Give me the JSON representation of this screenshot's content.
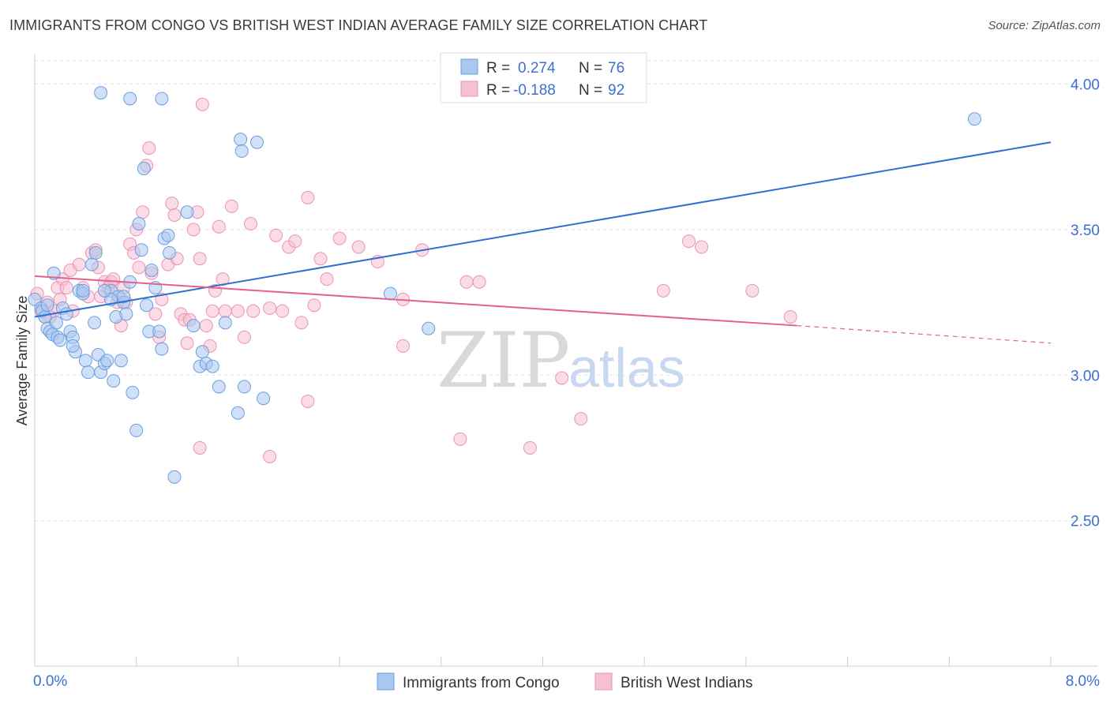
{
  "header": {
    "title": "IMMIGRANTS FROM CONGO VS BRITISH WEST INDIAN AVERAGE FAMILY SIZE CORRELATION CHART",
    "source": "Source: ZipAtlas.com"
  },
  "watermark": {
    "zip": "ZIP",
    "atlas": "atlas"
  },
  "legend_box": {
    "r_label": "R =",
    "n_label": "N =",
    "rows": [
      {
        "r": "0.274",
        "n": "76"
      },
      {
        "r": "-0.188",
        "n": "92"
      }
    ]
  },
  "colors": {
    "congo_fill": "#a9c8f0",
    "congo_stroke": "#6b9fe0",
    "congo_line": "#2f6fd0",
    "bwi_fill": "#f6c0d3",
    "bwi_stroke": "#ec93b3",
    "bwi_line": "#e4608f",
    "tick_label": "#3b6fd0",
    "grid": "#e3e3e3"
  },
  "chart_data": {
    "type": "scatter",
    "title": "IMMIGRANTS FROM CONGO VS BRITISH WEST INDIAN AVERAGE FAMILY SIZE CORRELATION CHART",
    "xlabel": "",
    "ylabel": "Average Family Size",
    "xlim": [
      0,
      8
    ],
    "ylim": [
      2.0,
      4.08
    ],
    "x_tick_labels": [
      "0.0%",
      "8.0%"
    ],
    "y_ticks": [
      2.5,
      3.0,
      3.5,
      4.0
    ],
    "y_tick_labels": [
      "2.50",
      "3.00",
      "3.50",
      "4.00"
    ],
    "grid": true,
    "legend_position": "top-center",
    "series": [
      {
        "name": "Immigrants from Congo",
        "trend": {
          "x": [
            0.0,
            8.0
          ],
          "y": [
            3.2,
            3.8
          ]
        },
        "points": [
          [
            0.0,
            3.26
          ],
          [
            0.05,
            3.23
          ],
          [
            0.06,
            3.22
          ],
          [
            0.08,
            3.2
          ],
          [
            0.1,
            3.16
          ],
          [
            0.12,
            3.15
          ],
          [
            0.14,
            3.14
          ],
          [
            0.15,
            3.35
          ],
          [
            0.17,
            3.18
          ],
          [
            0.18,
            3.13
          ],
          [
            0.22,
            3.23
          ],
          [
            0.25,
            3.21
          ],
          [
            0.28,
            3.15
          ],
          [
            0.3,
            3.13
          ],
          [
            0.32,
            3.08
          ],
          [
            0.35,
            3.29
          ],
          [
            0.38,
            3.28
          ],
          [
            0.4,
            3.05
          ],
          [
            0.42,
            3.01
          ],
          [
            0.45,
            3.38
          ],
          [
            0.47,
            3.18
          ],
          [
            0.48,
            3.42
          ],
          [
            0.5,
            3.07
          ],
          [
            0.52,
            3.01
          ],
          [
            0.55,
            3.04
          ],
          [
            0.57,
            3.05
          ],
          [
            0.6,
            3.29
          ],
          [
            0.62,
            2.98
          ],
          [
            0.64,
            3.2
          ],
          [
            0.66,
            3.27
          ],
          [
            0.68,
            3.05
          ],
          [
            0.7,
            3.25
          ],
          [
            0.72,
            3.21
          ],
          [
            0.75,
            3.32
          ],
          [
            0.77,
            2.94
          ],
          [
            0.8,
            2.81
          ],
          [
            0.82,
            3.52
          ],
          [
            0.84,
            3.43
          ],
          [
            0.86,
            3.71
          ],
          [
            0.88,
            3.24
          ],
          [
            0.9,
            3.15
          ],
          [
            0.92,
            3.36
          ],
          [
            0.95,
            3.3
          ],
          [
            0.98,
            3.15
          ],
          [
            1.0,
            3.09
          ],
          [
            1.02,
            3.47
          ],
          [
            1.05,
            3.48
          ],
          [
            1.06,
            3.42
          ],
          [
            1.2,
            3.56
          ],
          [
            1.25,
            3.17
          ],
          [
            1.3,
            3.03
          ],
          [
            1.32,
            3.08
          ],
          [
            1.35,
            3.04
          ],
          [
            1.4,
            3.03
          ],
          [
            1.45,
            2.96
          ],
          [
            1.5,
            3.18
          ],
          [
            1.6,
            2.87
          ],
          [
            1.62,
            3.81
          ],
          [
            1.63,
            3.77
          ],
          [
            1.65,
            2.96
          ],
          [
            1.75,
            3.8
          ],
          [
            1.8,
            2.92
          ],
          [
            0.52,
            3.97
          ],
          [
            0.75,
            3.95
          ],
          [
            1.0,
            3.95
          ],
          [
            2.8,
            3.28
          ],
          [
            3.1,
            3.16
          ],
          [
            7.4,
            3.88
          ],
          [
            0.6,
            3.26
          ],
          [
            0.7,
            3.27
          ],
          [
            0.55,
            3.29
          ],
          [
            0.38,
            3.29
          ],
          [
            1.1,
            2.65
          ],
          [
            0.3,
            3.1
          ],
          [
            0.2,
            3.12
          ],
          [
            0.1,
            3.24
          ]
        ]
      },
      {
        "name": "British West Indians",
        "trend": {
          "x": [
            0.0,
            6.0
          ],
          "y": [
            3.34,
            3.17
          ],
          "dashed_to": [
            8.0,
            3.11
          ]
        },
        "points": [
          [
            0.02,
            3.28
          ],
          [
            0.05,
            3.22
          ],
          [
            0.08,
            3.2
          ],
          [
            0.1,
            3.25
          ],
          [
            0.15,
            3.22
          ],
          [
            0.18,
            3.3
          ],
          [
            0.22,
            3.33
          ],
          [
            0.25,
            3.3
          ],
          [
            0.28,
            3.36
          ],
          [
            0.3,
            3.22
          ],
          [
            0.35,
            3.38
          ],
          [
            0.38,
            3.3
          ],
          [
            0.42,
            3.27
          ],
          [
            0.45,
            3.42
          ],
          [
            0.48,
            3.43
          ],
          [
            0.5,
            3.37
          ],
          [
            0.52,
            3.27
          ],
          [
            0.55,
            3.32
          ],
          [
            0.58,
            3.3
          ],
          [
            0.6,
            3.32
          ],
          [
            0.62,
            3.33
          ],
          [
            0.65,
            3.25
          ],
          [
            0.68,
            3.17
          ],
          [
            0.7,
            3.3
          ],
          [
            0.72,
            3.25
          ],
          [
            0.75,
            3.45
          ],
          [
            0.78,
            3.42
          ],
          [
            0.8,
            3.5
          ],
          [
            0.82,
            3.37
          ],
          [
            0.85,
            3.56
          ],
          [
            0.88,
            3.72
          ],
          [
            0.9,
            3.78
          ],
          [
            0.92,
            3.35
          ],
          [
            0.95,
            3.21
          ],
          [
            0.98,
            3.13
          ],
          [
            1.0,
            3.26
          ],
          [
            1.05,
            3.38
          ],
          [
            1.08,
            3.59
          ],
          [
            1.1,
            3.55
          ],
          [
            1.12,
            3.4
          ],
          [
            1.15,
            3.21
          ],
          [
            1.18,
            3.19
          ],
          [
            1.2,
            3.11
          ],
          [
            1.22,
            3.19
          ],
          [
            1.25,
            3.5
          ],
          [
            1.28,
            3.56
          ],
          [
            1.3,
            3.4
          ],
          [
            1.32,
            3.93
          ],
          [
            1.35,
            3.17
          ],
          [
            1.38,
            3.1
          ],
          [
            1.4,
            3.22
          ],
          [
            1.42,
            3.29
          ],
          [
            1.45,
            3.51
          ],
          [
            1.48,
            3.33
          ],
          [
            1.5,
            3.22
          ],
          [
            1.55,
            3.58
          ],
          [
            1.6,
            3.22
          ],
          [
            1.65,
            3.13
          ],
          [
            1.7,
            3.52
          ],
          [
            1.72,
            3.22
          ],
          [
            1.85,
            3.23
          ],
          [
            1.9,
            3.48
          ],
          [
            1.95,
            3.22
          ],
          [
            2.0,
            3.44
          ],
          [
            2.05,
            3.46
          ],
          [
            2.1,
            3.18
          ],
          [
            2.15,
            3.61
          ],
          [
            2.2,
            3.24
          ],
          [
            2.25,
            3.4
          ],
          [
            2.3,
            3.33
          ],
          [
            2.4,
            3.47
          ],
          [
            2.55,
            3.44
          ],
          [
            2.7,
            3.39
          ],
          [
            2.9,
            3.26
          ],
          [
            2.9,
            3.1
          ],
          [
            3.05,
            3.43
          ],
          [
            3.4,
            3.32
          ],
          [
            3.5,
            3.32
          ],
          [
            1.3,
            2.75
          ],
          [
            1.85,
            2.72
          ],
          [
            2.15,
            2.91
          ],
          [
            3.35,
            2.78
          ],
          [
            3.9,
            2.75
          ],
          [
            4.15,
            2.99
          ],
          [
            4.3,
            2.85
          ],
          [
            4.95,
            3.29
          ],
          [
            5.15,
            3.46
          ],
          [
            5.25,
            3.44
          ],
          [
            5.65,
            3.29
          ],
          [
            5.95,
            3.2
          ],
          [
            0.12,
            3.2
          ],
          [
            0.2,
            3.26
          ]
        ]
      }
    ]
  }
}
